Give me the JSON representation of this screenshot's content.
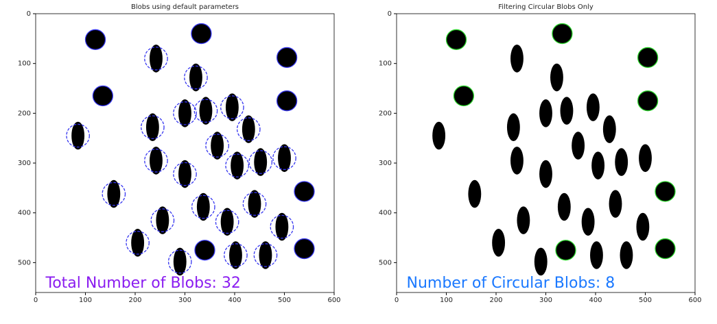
{
  "chart_data": [
    {
      "type": "image",
      "title": "Blobs using default parameters",
      "xlim": [
        0,
        600
      ],
      "ylim": [
        560,
        0
      ],
      "xticks": [
        0,
        100,
        200,
        300,
        400,
        500,
        600
      ],
      "yticks": [
        0,
        100,
        200,
        300,
        400,
        500
      ],
      "x": [
        120,
        333,
        242,
        505,
        322,
        135,
        505,
        300,
        342,
        395,
        235,
        428,
        85,
        365,
        242,
        500,
        300,
        405,
        452,
        540,
        157,
        337,
        440,
        255,
        385,
        495,
        205,
        340,
        540,
        402,
        462,
        290
      ],
      "values": [
        52,
        40,
        90,
        88,
        128,
        165,
        175,
        200,
        195,
        188,
        228,
        232,
        245,
        265,
        295,
        290,
        322,
        305,
        298,
        357,
        362,
        388,
        382,
        415,
        418,
        428,
        460,
        475,
        472,
        485,
        485,
        498
      ],
      "circular": [
        true,
        true,
        false,
        true,
        false,
        true,
        true,
        false,
        false,
        false,
        false,
        false,
        false,
        false,
        false,
        false,
        false,
        false,
        false,
        true,
        false,
        false,
        false,
        false,
        false,
        false,
        false,
        true,
        true,
        false,
        false,
        false
      ],
      "detect": "all",
      "marker_color": "#3535f0",
      "annotation": "Total Number of Blobs: 32",
      "annotation_color": "#8a1cf0"
    },
    {
      "type": "image",
      "title": "Filtering Circular Blobs Only",
      "xlim": [
        0,
        600
      ],
      "ylim": [
        560,
        0
      ],
      "xticks": [
        0,
        100,
        200,
        300,
        400,
        500,
        600
      ],
      "yticks": [
        0,
        100,
        200,
        300,
        400,
        500
      ],
      "x": [
        120,
        333,
        242,
        505,
        322,
        135,
        505,
        300,
        342,
        395,
        235,
        428,
        85,
        365,
        242,
        500,
        300,
        405,
        452,
        540,
        157,
        337,
        440,
        255,
        385,
        495,
        205,
        340,
        540,
        402,
        462,
        290
      ],
      "values": [
        52,
        40,
        90,
        88,
        128,
        165,
        175,
        200,
        195,
        188,
        228,
        232,
        245,
        265,
        295,
        290,
        322,
        305,
        298,
        357,
        362,
        388,
        382,
        415,
        418,
        428,
        460,
        475,
        472,
        485,
        485,
        498
      ],
      "circular": [
        true,
        true,
        false,
        true,
        false,
        true,
        true,
        false,
        false,
        false,
        false,
        false,
        false,
        false,
        false,
        false,
        false,
        false,
        false,
        true,
        false,
        false,
        false,
        false,
        false,
        false,
        false,
        true,
        true,
        false,
        false,
        false
      ],
      "detect": "circular",
      "marker_color": "#2ad42a",
      "annotation": "Number of Circular Blobs: 8",
      "annotation_color": "#1a78ff"
    }
  ]
}
